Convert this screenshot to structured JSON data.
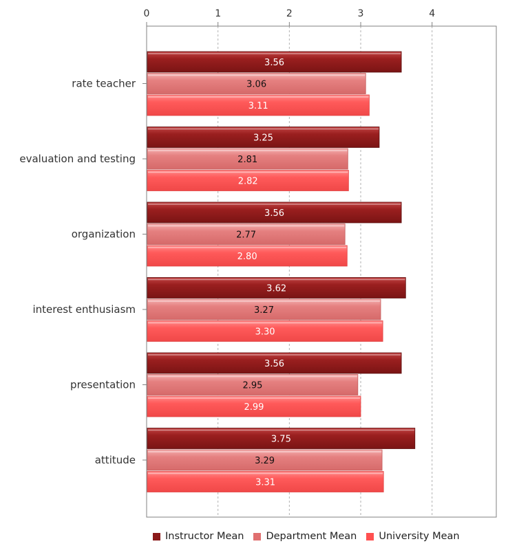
{
  "chart_data": {
    "type": "bar",
    "orientation": "horizontal",
    "categories": [
      "rate teacher",
      "evaluation and testing",
      "organization",
      "interest enthusiasm",
      "presentation",
      "attitude"
    ],
    "series": [
      {
        "name": "Instructor Mean",
        "color": "#8b1a1a",
        "values": [
          3.56,
          3.25,
          3.56,
          3.62,
          3.56,
          3.75
        ],
        "labels": [
          "3.56",
          "3.25",
          "3.56",
          "3.62",
          "3.56",
          "3.75"
        ]
      },
      {
        "name": "Department Mean",
        "color": "#e07070",
        "values": [
          3.06,
          2.81,
          2.77,
          3.27,
          2.95,
          3.29
        ],
        "labels": [
          "3.06",
          "2.81",
          "2.77",
          "3.27",
          "2.95",
          "3.29"
        ]
      },
      {
        "name": "University Mean",
        "color": "#ff5050",
        "values": [
          3.11,
          2.82,
          2.8,
          3.3,
          2.99,
          3.31
        ],
        "labels": [
          "3.11",
          "2.82",
          "2.80",
          "3.30",
          "2.99",
          "3.31"
        ]
      }
    ],
    "xlim": [
      0,
      4.9
    ],
    "xticks": [
      0,
      1,
      2,
      3,
      4
    ],
    "xtick_labels": [
      "0",
      "1",
      "2",
      "3",
      "4"
    ],
    "xaxis_position": "top",
    "grid": true,
    "legend_position": "bottom"
  }
}
